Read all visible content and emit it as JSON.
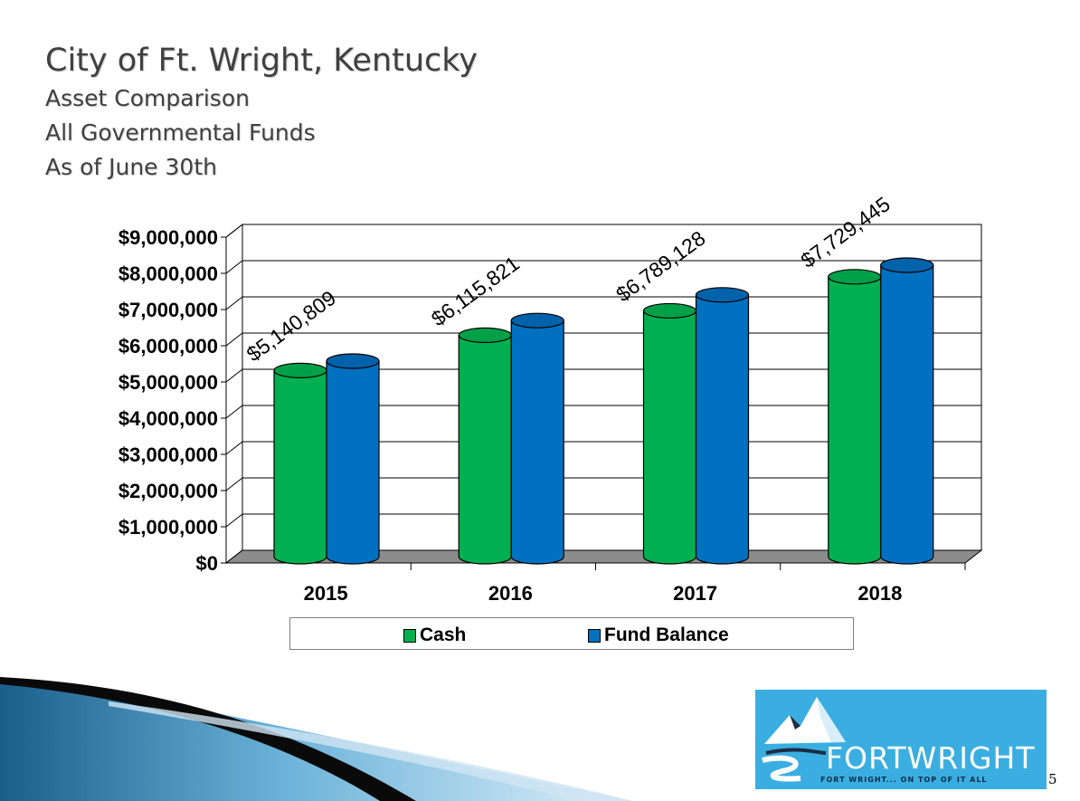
{
  "title": {
    "main": "City of Ft. Wright, Kentucky",
    "lines": [
      "Asset Comparison",
      "All Governmental Funds",
      "As of June 30th"
    ]
  },
  "chart_data": {
    "type": "bar",
    "categories": [
      "2015",
      "2016",
      "2017",
      "2018"
    ],
    "series": [
      {
        "name": "Cash",
        "color": "#00b050",
        "values": [
          5140809,
          6115821,
          6789128,
          7729445
        ]
      },
      {
        "name": "Fund Balance",
        "color": "#0070c0",
        "values": [
          5400000,
          6520000,
          7230000,
          8050000
        ]
      }
    ],
    "data_labels": [
      "$5,140,809",
      "$6,115,821",
      "$6,789,128",
      "$7,729,445"
    ],
    "ylim": [
      0,
      9000000
    ],
    "y_ticks": [
      "$0",
      "$1,000,000",
      "$2,000,000",
      "$3,000,000",
      "$4,000,000",
      "$5,000,000",
      "$6,000,000",
      "$7,000,000",
      "$8,000,000",
      "$9,000,000"
    ],
    "grid": true,
    "legend_position": "bottom"
  },
  "legend": {
    "cash_label": "Cash",
    "fund_label": "Fund Balance"
  },
  "logo": {
    "word": "FORTWRIGHT",
    "tagline": "FORT WRIGHT... ON TOP OF IT ALL"
  },
  "page_number": "5",
  "colors": {
    "cash": "#00b050",
    "fund": "#0070c0",
    "title": "#404040",
    "logo_bg": "#3aaee0"
  }
}
